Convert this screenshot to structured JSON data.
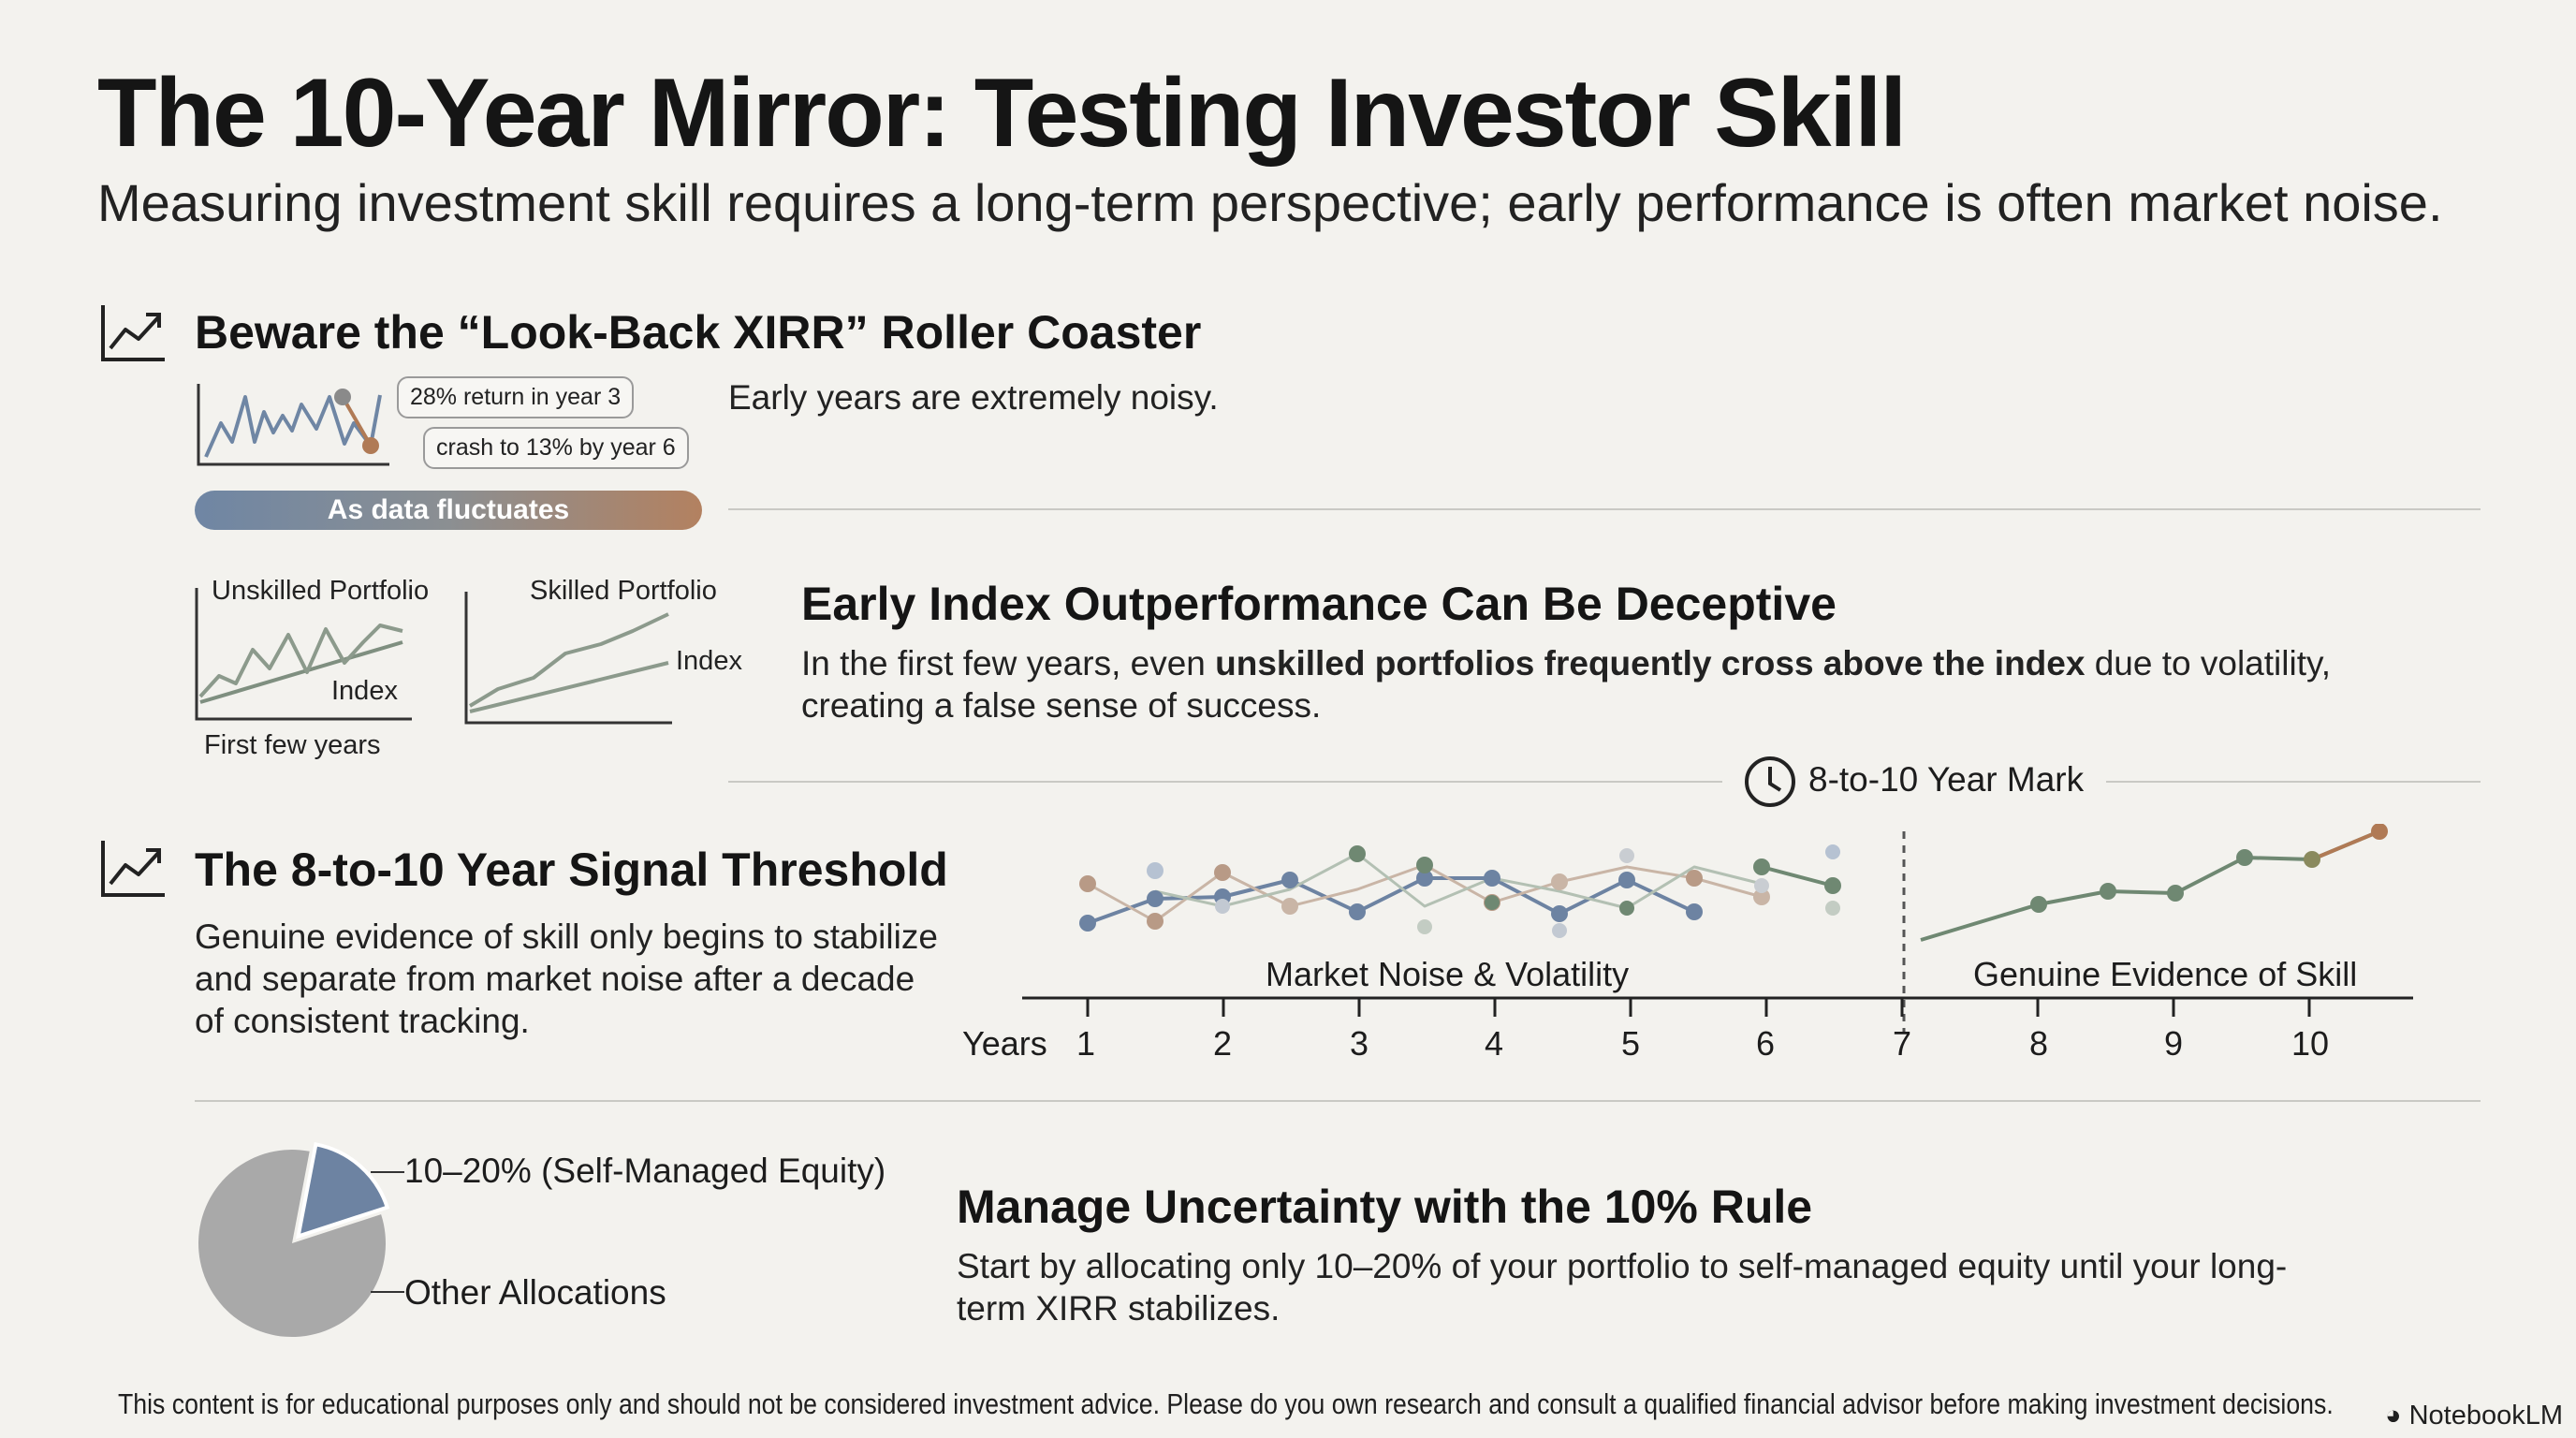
{
  "header": {
    "title": "The 10-Year Mirror: Testing Investor Skill",
    "subtitle": "Measuring investment skill requires a long-term perspective; early performance is often market noise."
  },
  "section1": {
    "heading": "Beware the “Look-Back XIRR” Roller Coaster",
    "icon": "trend-chart-icon",
    "callout_peak": "28% return in year 3",
    "callout_crash": "crash to 13% by year 6",
    "pill": "As data fluctuates",
    "text": "Early years are extremely noisy."
  },
  "section2": {
    "heading": "Early Index Outperformance Can Be Deceptive",
    "text_before": "In the first few years, even ",
    "text_bold": "unskilled portfolios frequently cross above the index",
    "text_after": " due to volatility, creating a false sense of success.",
    "unskilled_label": "Unskilled Portfolio",
    "skilled_label": "Skilled Portfolio",
    "index_label": "Index",
    "first_years_label": "First few years"
  },
  "section3": {
    "heading": "The 8-to-10 Year Signal Threshold",
    "icon": "trend-chart-icon",
    "text": "Genuine evidence of skill only begins to stabilize and separate from market noise after a decade of consistent tracking.",
    "mark_label": "8-to-10 Year Mark",
    "mark_icon": "clock-icon",
    "noise_label": "Market Noise & Volatility",
    "skill_label": "Genuine Evidence of Skill",
    "axis_label": "Years",
    "years": [
      "1",
      "2",
      "3",
      "4",
      "5",
      "6",
      "7",
      "8",
      "9",
      "10"
    ]
  },
  "section4": {
    "heading": "Manage Uncertainty with the 10% Rule",
    "text": "Start by allocating only 10–20% of your portfolio to self-managed equity until your long-term XIRR stabilizes.",
    "pie_label_self": "10–20% (Self-Managed Equity)",
    "pie_label_other": "Other Allocations"
  },
  "chart_data": {
    "type": "pie",
    "categories": [
      "10–20% (Self-Managed Equity)",
      "Other Allocations"
    ],
    "values": [
      17,
      83
    ],
    "colors": [
      "#6d83a2",
      "#a9a9a9"
    ]
  },
  "colors": {
    "blue": "#6d83a2",
    "copper": "#b07a55",
    "green": "#6f8872",
    "gray": "#8f8f8f"
  },
  "footer": {
    "disclaimer": "This content is for educational purposes only and should not be considered investment advice. Please do you own research and consult a qualified financial advisor before making investment decisions.",
    "brand": "NotebookLM"
  }
}
